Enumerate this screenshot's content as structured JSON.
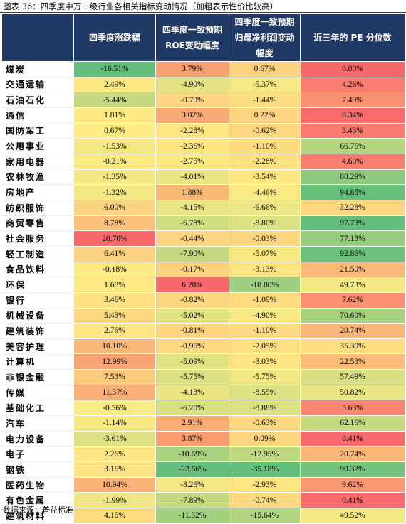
{
  "caption": "图表 36：四季度中万一级行业各相关指标变动情况（加粗表示性价比较高）",
  "headers": [
    "",
    "四季度涨跌幅",
    "四季度一致预期ROE变动幅度",
    "四季度一致预期归母净利润变动幅度",
    "近三年的 PE 分位数"
  ],
  "rows": [
    {
      "name": "煤炭",
      "v": [
        "-16.51%",
        "3.79%",
        "0.67%",
        "0.00%"
      ],
      "c": [
        "#63be7b",
        "#f8a071",
        "#fdd17f",
        "#f8696b"
      ]
    },
    {
      "name": "交通运输",
      "v": [
        "2.49%",
        "-4.90%",
        "-5.37%",
        "4.26%"
      ],
      "c": [
        "#fde783",
        "#e3e383",
        "#f6e884",
        "#f97e6f"
      ]
    },
    {
      "name": "石油石化",
      "v": [
        "-5.44%",
        "-0.70%",
        "-1.44%",
        "7.49%"
      ],
      "c": [
        "#c5da80",
        "#fed680",
        "#fedd81",
        "#fa8f72"
      ]
    },
    {
      "name": "通信",
      "v": [
        "1.81%",
        "3.02%",
        "0.22%",
        "0.34%"
      ],
      "c": [
        "#fde883",
        "#f9aa74",
        "#fdd47f",
        "#f86a6b"
      ]
    },
    {
      "name": "国防军工",
      "v": [
        "0.67%",
        "-2.28%",
        "-0.62%",
        "3.43%"
      ],
      "c": [
        "#fdeb84",
        "#fee482",
        "#fed880",
        "#f97a6e"
      ]
    },
    {
      "name": "公用事业",
      "v": [
        "-1.53%",
        "-2.36%",
        "-1.10%",
        "66.76%"
      ],
      "c": [
        "#f3e884",
        "#fee582",
        "#feda80",
        "#b5d57f"
      ]
    },
    {
      "name": "家用电器",
      "v": [
        "-0.21%",
        "-2.75%",
        "-2.28%",
        "4.60%"
      ],
      "c": [
        "#fbea84",
        "#fae883",
        "#fee182",
        "#f98070"
      ]
    },
    {
      "name": "农林牧渔",
      "v": [
        "-1.35%",
        "-4.01%",
        "-3.54%",
        "80.29%"
      ],
      "c": [
        "#f4e884",
        "#ece583",
        "#fee783",
        "#8ec97d"
      ]
    },
    {
      "name": "房地产",
      "v": [
        "-1.32%",
        "1.88%",
        "-4.46%",
        "94.85%"
      ],
      "c": [
        "#f4e884",
        "#fbb977",
        "#fbea84",
        "#66bf7b"
      ]
    },
    {
      "name": "纺织服饰",
      "v": [
        "6.00%",
        "-4.15%",
        "-6.66%",
        "32.28%"
      ],
      "c": [
        "#fcd47f",
        "#ebe483",
        "#ede684",
        "#fed780"
      ]
    },
    {
      "name": "商贸零售",
      "v": [
        "8.78%",
        "-6.78%",
        "-8.80%",
        "97.73%"
      ],
      "c": [
        "#fbc07a",
        "#d0dd81",
        "#dce383",
        "#63be7b"
      ]
    },
    {
      "name": "社会服务",
      "v": [
        "20.70%",
        "-0.44%",
        "-0.03%",
        "77.13%"
      ],
      "c": [
        "#f8696b",
        "#fdd480",
        "#fdd680",
        "#97cc7e"
      ]
    },
    {
      "name": "轻工制造",
      "v": [
        "6.41%",
        "-7.90%",
        "-5.07%",
        "92.86%"
      ],
      "c": [
        "#fcd17f",
        "#c5da80",
        "#f8e884",
        "#6cc17c"
      ]
    },
    {
      "name": "食品饮料",
      "v": [
        "-0.18%",
        "-0.17%",
        "-3.13%",
        "21.50%"
      ],
      "c": [
        "#fbea84",
        "#fdd27f",
        "#fee583",
        "#fcbb79"
      ]
    },
    {
      "name": "环保",
      "v": [
        "1.68%",
        "6.28%",
        "-18.80%",
        "49.73%"
      ],
      "c": [
        "#fde983",
        "#f8696b",
        "#9fcf7f",
        "#f3e884"
      ]
    },
    {
      "name": "银行",
      "v": [
        "3.46%",
        "-0.82%",
        "-1.09%",
        "7.62%"
      ],
      "c": [
        "#fde183",
        "#fed680",
        "#feda80",
        "#fa8f72"
      ]
    },
    {
      "name": "机械设备",
      "v": [
        "5.43%",
        "-5.02%",
        "-4.90%",
        "70.60%"
      ],
      "c": [
        "#fcd880",
        "#e2e383",
        "#f8e884",
        "#a8d17f"
      ]
    },
    {
      "name": "建筑装饰",
      "v": [
        "2.76%",
        "-0.81%",
        "-1.10%",
        "20.74%"
      ],
      "c": [
        "#fde583",
        "#fed680",
        "#feda80",
        "#fcb878"
      ]
    },
    {
      "name": "美容护理",
      "v": [
        "10.10%",
        "-0.96%",
        "-2.05%",
        "35.30%"
      ],
      "c": [
        "#fbb778",
        "#fed880",
        "#fedf81",
        "#fede81"
      ]
    },
    {
      "name": "计算机",
      "v": [
        "12.99%",
        "-5.09%",
        "-3.03%",
        "22.53%"
      ],
      "c": [
        "#faa475",
        "#e1e383",
        "#fee482",
        "#fcbd79"
      ]
    },
    {
      "name": "非银金融",
      "v": [
        "7.53%",
        "-5.75%",
        "-5.75%",
        "57.49%"
      ],
      "c": [
        "#fcca7d",
        "#dbe082",
        "#f3e784",
        "#d6df82"
      ]
    },
    {
      "name": "传媒",
      "v": [
        "11.37%",
        "-4.13%",
        "-8.55%",
        "50.82%"
      ],
      "c": [
        "#fbaf76",
        "#ebe483",
        "#dde383",
        "#ede584"
      ]
    },
    {
      "name": "基础化工",
      "v": [
        "-0.56%",
        "-6.20%",
        "-8.88%",
        "5.63%"
      ],
      "c": [
        "#f8ea84",
        "#d6df82",
        "#dae283",
        "#f98670"
      ]
    },
    {
      "name": "汽车",
      "v": [
        "-1.14%",
        "2.91%",
        "-0.63%",
        "62.16%"
      ],
      "c": [
        "#f6e984",
        "#faac74",
        "#fed880",
        "#c5da80"
      ]
    },
    {
      "name": "电力设备",
      "v": [
        "-3.61%",
        "3.87%",
        "0.09%",
        "0.41%"
      ],
      "c": [
        "#dee183",
        "#f89e70",
        "#fdd57f",
        "#f86a6b"
      ]
    },
    {
      "name": "电子",
      "v": [
        "2.26%",
        "-10.69%",
        "-12.95%",
        "20.74%"
      ],
      "c": [
        "#fde683",
        "#a9d27f",
        "#bfd981",
        "#fcb878"
      ]
    },
    {
      "name": "钢铁",
      "v": [
        "3.16%",
        "-22.66%",
        "-35.18%",
        "90.32%"
      ],
      "c": [
        "#fde383",
        "#63be7b",
        "#63be7b",
        "#74c37c"
      ]
    },
    {
      "name": "医药生物",
      "v": [
        "10.94%",
        "-3.26%",
        "-2.93%",
        "9.62%"
      ],
      "c": [
        "#fbb277",
        "#f3e784",
        "#fee482",
        "#fa9773"
      ]
    },
    {
      "name": "有色金属",
      "v": [
        "-1.99%",
        "-7.89%",
        "-0.74%",
        "0.41%"
      ],
      "c": [
        "#efe784",
        "#c5da80",
        "#fed980",
        "#f86a6b"
      ]
    },
    {
      "name": "建筑材料",
      "v": [
        "4.16%",
        "-11.32%",
        "-15.64%",
        "49.52%"
      ],
      "c": [
        "#fcdd82",
        "#a3d07f",
        "#b0d480",
        "#f3e884"
      ]
    }
  ],
  "source": "数据来源：普益标准"
}
